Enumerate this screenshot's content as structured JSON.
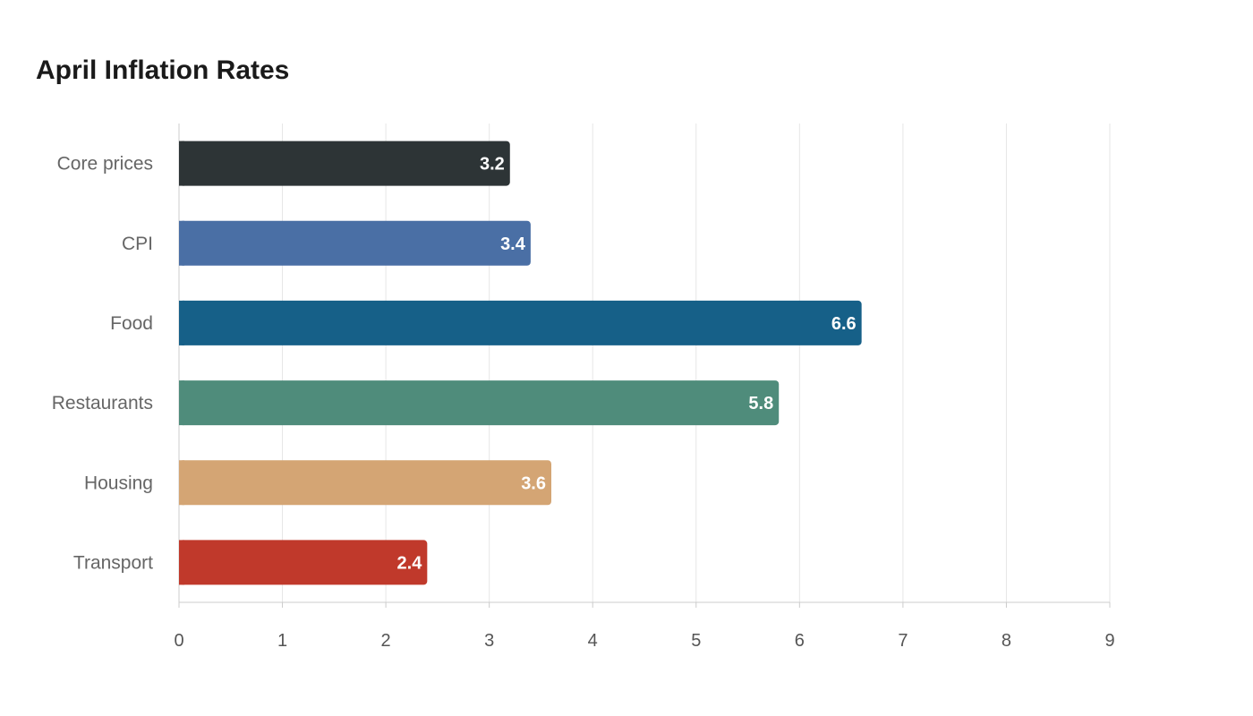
{
  "chart_data": {
    "type": "bar",
    "orientation": "horizontal",
    "title": "April Inflation Rates",
    "xlabel": "",
    "ylabel": "",
    "categories": [
      "Core prices",
      "CPI",
      "Food",
      "Restaurants",
      "Housing",
      "Transport"
    ],
    "values": [
      3.2,
      3.4,
      6.6,
      5.8,
      3.6,
      2.4
    ],
    "colors": [
      "#2d3436",
      "#4a6fa5",
      "#166088",
      "#4f8c7b",
      "#d4a574",
      "#c0392b"
    ],
    "xlim": [
      0,
      9
    ],
    "xticks": [
      "0",
      "1",
      "2",
      "3",
      "4",
      "5",
      "6",
      "7",
      "8",
      "9"
    ],
    "grid": true,
    "legend": "none",
    "data_labels": [
      "3.2",
      "3.4",
      "6.6",
      "5.8",
      "3.6",
      "2.4"
    ]
  }
}
